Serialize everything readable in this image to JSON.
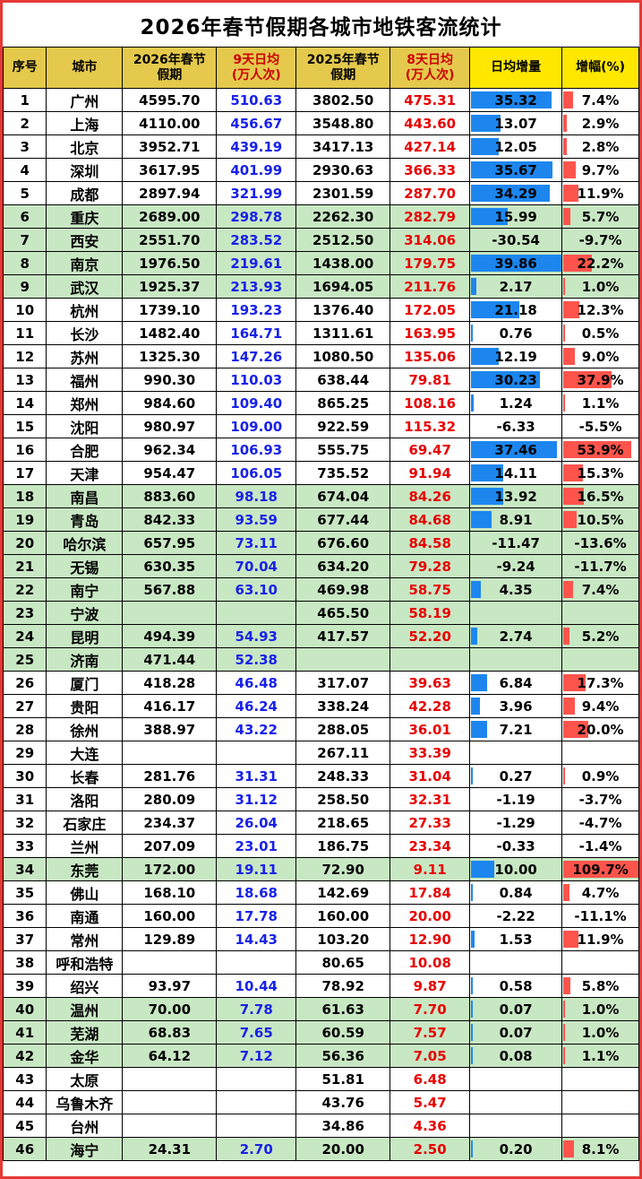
{
  "title": "2026年春节假期各城市地铁客流统计",
  "chart_data": {
    "type": "table",
    "title": "2026年春节假期各城市地铁客流统计",
    "columns": [
      {
        "line1": "序号",
        "line2": ""
      },
      {
        "line1": "城市",
        "line2": ""
      },
      {
        "line1": "2026年春节",
        "line2": "假期"
      },
      {
        "line1": "9天日均",
        "line2": "(万人次)"
      },
      {
        "line1": "2025年春节",
        "line2": "假期"
      },
      {
        "line1": "8天日均",
        "line2": "(万人次)"
      },
      {
        "line1": "日均增量",
        "line2": ""
      },
      {
        "line1": "增幅(%)",
        "line2": ""
      }
    ],
    "bar_scale": {
      "delta_max": 40,
      "growth_max": 60
    },
    "colors": {
      "outer_border": "#e53935",
      "header_gold": "#e4c94c",
      "header_yellow": "#ffe700",
      "header_red_text": "#cc0000",
      "row_green": "#c8e7c3",
      "avg9_text": "#1822e8",
      "avg8_text": "#e80000",
      "delta_bar": "#1c86ee",
      "growth_bar": "#ff544c"
    },
    "rows": [
      {
        "no": "1",
        "city": "广州",
        "y2026": "4595.70",
        "avg9": "510.63",
        "y2025": "3802.50",
        "avg8": "475.31",
        "delta": "35.32",
        "growth": "7.4%",
        "delta_val": 35.32,
        "growth_val": 7.4,
        "green": false
      },
      {
        "no": "2",
        "city": "上海",
        "y2026": "4110.00",
        "avg9": "456.67",
        "y2025": "3548.80",
        "avg8": "443.60",
        "delta": "13.07",
        "growth": "2.9%",
        "delta_val": 13.07,
        "growth_val": 2.9,
        "green": false
      },
      {
        "no": "3",
        "city": "北京",
        "y2026": "3952.71",
        "avg9": "439.19",
        "y2025": "3417.13",
        "avg8": "427.14",
        "delta": "12.05",
        "growth": "2.8%",
        "delta_val": 12.05,
        "growth_val": 2.8,
        "green": false
      },
      {
        "no": "4",
        "city": "深圳",
        "y2026": "3617.95",
        "avg9": "401.99",
        "y2025": "2930.63",
        "avg8": "366.33",
        "delta": "35.67",
        "growth": "9.7%",
        "delta_val": 35.67,
        "growth_val": 9.7,
        "green": false
      },
      {
        "no": "5",
        "city": "成都",
        "y2026": "2897.94",
        "avg9": "321.99",
        "y2025": "2301.59",
        "avg8": "287.70",
        "delta": "34.29",
        "growth": "11.9%",
        "delta_val": 34.29,
        "growth_val": 11.9,
        "green": false
      },
      {
        "no": "6",
        "city": "重庆",
        "y2026": "2689.00",
        "avg9": "298.78",
        "y2025": "2262.30",
        "avg8": "282.79",
        "delta": "15.99",
        "growth": "5.7%",
        "delta_val": 15.99,
        "growth_val": 5.7,
        "green": true
      },
      {
        "no": "7",
        "city": "西安",
        "y2026": "2551.70",
        "avg9": "283.52",
        "y2025": "2512.50",
        "avg8": "314.06",
        "delta": "-30.54",
        "growth": "-9.7%",
        "delta_val": -30.54,
        "growth_val": -9.7,
        "green": true
      },
      {
        "no": "8",
        "city": "南京",
        "y2026": "1976.50",
        "avg9": "219.61",
        "y2025": "1438.00",
        "avg8": "179.75",
        "delta": "39.86",
        "growth": "22.2%",
        "delta_val": 39.86,
        "growth_val": 22.2,
        "green": true
      },
      {
        "no": "9",
        "city": "武汉",
        "y2026": "1925.37",
        "avg9": "213.93",
        "y2025": "1694.05",
        "avg8": "211.76",
        "delta": "2.17",
        "growth": "1.0%",
        "delta_val": 2.17,
        "growth_val": 1.0,
        "green": true
      },
      {
        "no": "10",
        "city": "杭州",
        "y2026": "1739.10",
        "avg9": "193.23",
        "y2025": "1376.40",
        "avg8": "172.05",
        "delta": "21.18",
        "growth": "12.3%",
        "delta_val": 21.18,
        "growth_val": 12.3,
        "green": false
      },
      {
        "no": "11",
        "city": "长沙",
        "y2026": "1482.40",
        "avg9": "164.71",
        "y2025": "1311.61",
        "avg8": "163.95",
        "delta": "0.76",
        "growth": "0.5%",
        "delta_val": 0.76,
        "growth_val": 0.5,
        "green": false
      },
      {
        "no": "12",
        "city": "苏州",
        "y2026": "1325.30",
        "avg9": "147.26",
        "y2025": "1080.50",
        "avg8": "135.06",
        "delta": "12.19",
        "growth": "9.0%",
        "delta_val": 12.19,
        "growth_val": 9.0,
        "green": false
      },
      {
        "no": "13",
        "city": "福州",
        "y2026": "990.30",
        "avg9": "110.03",
        "y2025": "638.44",
        "avg8": "79.81",
        "delta": "30.23",
        "growth": "37.9%",
        "delta_val": 30.23,
        "growth_val": 37.9,
        "green": false
      },
      {
        "no": "14",
        "city": "郑州",
        "y2026": "984.60",
        "avg9": "109.40",
        "y2025": "865.25",
        "avg8": "108.16",
        "delta": "1.24",
        "growth": "1.1%",
        "delta_val": 1.24,
        "growth_val": 1.1,
        "green": false
      },
      {
        "no": "15",
        "city": "沈阳",
        "y2026": "980.97",
        "avg9": "109.00",
        "y2025": "922.59",
        "avg8": "115.32",
        "delta": "-6.33",
        "growth": "-5.5%",
        "delta_val": -6.33,
        "growth_val": -5.5,
        "green": false
      },
      {
        "no": "16",
        "city": "合肥",
        "y2026": "962.34",
        "avg9": "106.93",
        "y2025": "555.75",
        "avg8": "69.47",
        "delta": "37.46",
        "growth": "53.9%",
        "delta_val": 37.46,
        "growth_val": 53.9,
        "green": false
      },
      {
        "no": "17",
        "city": "天津",
        "y2026": "954.47",
        "avg9": "106.05",
        "y2025": "735.52",
        "avg8": "91.94",
        "delta": "14.11",
        "growth": "15.3%",
        "delta_val": 14.11,
        "growth_val": 15.3,
        "green": false
      },
      {
        "no": "18",
        "city": "南昌",
        "y2026": "883.60",
        "avg9": "98.18",
        "y2025": "674.04",
        "avg8": "84.26",
        "delta": "13.92",
        "growth": "16.5%",
        "delta_val": 13.92,
        "growth_val": 16.5,
        "green": true
      },
      {
        "no": "19",
        "city": "青岛",
        "y2026": "842.33",
        "avg9": "93.59",
        "y2025": "677.44",
        "avg8": "84.68",
        "delta": "8.91",
        "growth": "10.5%",
        "delta_val": 8.91,
        "growth_val": 10.5,
        "green": true
      },
      {
        "no": "20",
        "city": "哈尔滨",
        "y2026": "657.95",
        "avg9": "73.11",
        "y2025": "676.60",
        "avg8": "84.58",
        "delta": "-11.47",
        "growth": "-13.6%",
        "delta_val": -11.47,
        "growth_val": -13.6,
        "green": true
      },
      {
        "no": "21",
        "city": "无锡",
        "y2026": "630.35",
        "avg9": "70.04",
        "y2025": "634.20",
        "avg8": "79.28",
        "delta": "-9.24",
        "growth": "-11.7%",
        "delta_val": -9.24,
        "growth_val": -11.7,
        "green": true
      },
      {
        "no": "22",
        "city": "南宁",
        "y2026": "567.88",
        "avg9": "63.10",
        "y2025": "469.98",
        "avg8": "58.75",
        "delta": "4.35",
        "growth": "7.4%",
        "delta_val": 4.35,
        "growth_val": 7.4,
        "green": true
      },
      {
        "no": "23",
        "city": "宁波",
        "y2026": "",
        "avg9": "",
        "y2025": "465.50",
        "avg8": "58.19",
        "delta": "",
        "growth": "",
        "delta_val": null,
        "growth_val": null,
        "green": true
      },
      {
        "no": "24",
        "city": "昆明",
        "y2026": "494.39",
        "avg9": "54.93",
        "y2025": "417.57",
        "avg8": "52.20",
        "delta": "2.74",
        "growth": "5.2%",
        "delta_val": 2.74,
        "growth_val": 5.2,
        "green": true
      },
      {
        "no": "25",
        "city": "济南",
        "y2026": "471.44",
        "avg9": "52.38",
        "y2025": "",
        "avg8": "",
        "delta": "",
        "growth": "",
        "delta_val": null,
        "growth_val": null,
        "green": true
      },
      {
        "no": "26",
        "city": "厦门",
        "y2026": "418.28",
        "avg9": "46.48",
        "y2025": "317.07",
        "avg8": "39.63",
        "delta": "6.84",
        "growth": "17.3%",
        "delta_val": 6.84,
        "growth_val": 17.3,
        "green": false
      },
      {
        "no": "27",
        "city": "贵阳",
        "y2026": "416.17",
        "avg9": "46.24",
        "y2025": "338.24",
        "avg8": "42.28",
        "delta": "3.96",
        "growth": "9.4%",
        "delta_val": 3.96,
        "growth_val": 9.4,
        "green": false
      },
      {
        "no": "28",
        "city": "徐州",
        "y2026": "388.97",
        "avg9": "43.22",
        "y2025": "288.05",
        "avg8": "36.01",
        "delta": "7.21",
        "growth": "20.0%",
        "delta_val": 7.21,
        "growth_val": 20.0,
        "green": false
      },
      {
        "no": "29",
        "city": "大连",
        "y2026": "",
        "avg9": "",
        "y2025": "267.11",
        "avg8": "33.39",
        "delta": "",
        "growth": "",
        "delta_val": null,
        "growth_val": null,
        "green": false
      },
      {
        "no": "30",
        "city": "长春",
        "y2026": "281.76",
        "avg9": "31.31",
        "y2025": "248.33",
        "avg8": "31.04",
        "delta": "0.27",
        "growth": "0.9%",
        "delta_val": 0.27,
        "growth_val": 0.9,
        "green": false
      },
      {
        "no": "31",
        "city": "洛阳",
        "y2026": "280.09",
        "avg9": "31.12",
        "y2025": "258.50",
        "avg8": "32.31",
        "delta": "-1.19",
        "growth": "-3.7%",
        "delta_val": -1.19,
        "growth_val": -3.7,
        "green": false
      },
      {
        "no": "32",
        "city": "石家庄",
        "y2026": "234.37",
        "avg9": "26.04",
        "y2025": "218.65",
        "avg8": "27.33",
        "delta": "-1.29",
        "growth": "-4.7%",
        "delta_val": -1.29,
        "growth_val": -4.7,
        "green": false
      },
      {
        "no": "33",
        "city": "兰州",
        "y2026": "207.09",
        "avg9": "23.01",
        "y2025": "186.75",
        "avg8": "23.34",
        "delta": "-0.33",
        "growth": "-1.4%",
        "delta_val": -0.33,
        "growth_val": -1.4,
        "green": false
      },
      {
        "no": "34",
        "city": "东莞",
        "y2026": "172.00",
        "avg9": "19.11",
        "y2025": "72.90",
        "avg8": "9.11",
        "delta": "10.00",
        "growth": "109.7%",
        "delta_val": 10.0,
        "growth_val": 109.7,
        "green": true
      },
      {
        "no": "35",
        "city": "佛山",
        "y2026": "168.10",
        "avg9": "18.68",
        "y2025": "142.69",
        "avg8": "17.84",
        "delta": "0.84",
        "growth": "4.7%",
        "delta_val": 0.84,
        "growth_val": 4.7,
        "green": false
      },
      {
        "no": "36",
        "city": "南通",
        "y2026": "160.00",
        "avg9": "17.78",
        "y2025": "160.00",
        "avg8": "20.00",
        "delta": "-2.22",
        "growth": "-11.1%",
        "delta_val": -2.22,
        "growth_val": -11.1,
        "green": false
      },
      {
        "no": "37",
        "city": "常州",
        "y2026": "129.89",
        "avg9": "14.43",
        "y2025": "103.20",
        "avg8": "12.90",
        "delta": "1.53",
        "growth": "11.9%",
        "delta_val": 1.53,
        "growth_val": 11.9,
        "green": false
      },
      {
        "no": "38",
        "city": "呼和浩特",
        "y2026": "",
        "avg9": "",
        "y2025": "80.65",
        "avg8": "10.08",
        "delta": "",
        "growth": "",
        "delta_val": null,
        "growth_val": null,
        "green": false
      },
      {
        "no": "39",
        "city": "绍兴",
        "y2026": "93.97",
        "avg9": "10.44",
        "y2025": "78.92",
        "avg8": "9.87",
        "delta": "0.58",
        "growth": "5.8%",
        "delta_val": 0.58,
        "growth_val": 5.8,
        "green": false
      },
      {
        "no": "40",
        "city": "温州",
        "y2026": "70.00",
        "avg9": "7.78",
        "y2025": "61.63",
        "avg8": "7.70",
        "delta": "0.07",
        "growth": "1.0%",
        "delta_val": 0.07,
        "growth_val": 1.0,
        "green": true
      },
      {
        "no": "41",
        "city": "芜湖",
        "y2026": "68.83",
        "avg9": "7.65",
        "y2025": "60.59",
        "avg8": "7.57",
        "delta": "0.07",
        "growth": "1.0%",
        "delta_val": 0.07,
        "growth_val": 1.0,
        "green": true
      },
      {
        "no": "42",
        "city": "金华",
        "y2026": "64.12",
        "avg9": "7.12",
        "y2025": "56.36",
        "avg8": "7.05",
        "delta": "0.08",
        "growth": "1.1%",
        "delta_val": 0.08,
        "growth_val": 1.1,
        "green": true
      },
      {
        "no": "43",
        "city": "太原",
        "y2026": "",
        "avg9": "",
        "y2025": "51.81",
        "avg8": "6.48",
        "delta": "",
        "growth": "",
        "delta_val": null,
        "growth_val": null,
        "green": false
      },
      {
        "no": "44",
        "city": "乌鲁木齐",
        "y2026": "",
        "avg9": "",
        "y2025": "43.76",
        "avg8": "5.47",
        "delta": "",
        "growth": "",
        "delta_val": null,
        "growth_val": null,
        "green": false
      },
      {
        "no": "45",
        "city": "台州",
        "y2026": "",
        "avg9": "",
        "y2025": "34.86",
        "avg8": "4.36",
        "delta": "",
        "growth": "",
        "delta_val": null,
        "growth_val": null,
        "green": false
      },
      {
        "no": "46",
        "city": "海宁",
        "y2026": "24.31",
        "avg9": "2.70",
        "y2025": "20.00",
        "avg8": "2.50",
        "delta": "0.20",
        "growth": "8.1%",
        "delta_val": 0.2,
        "growth_val": 8.1,
        "green": true
      }
    ]
  }
}
